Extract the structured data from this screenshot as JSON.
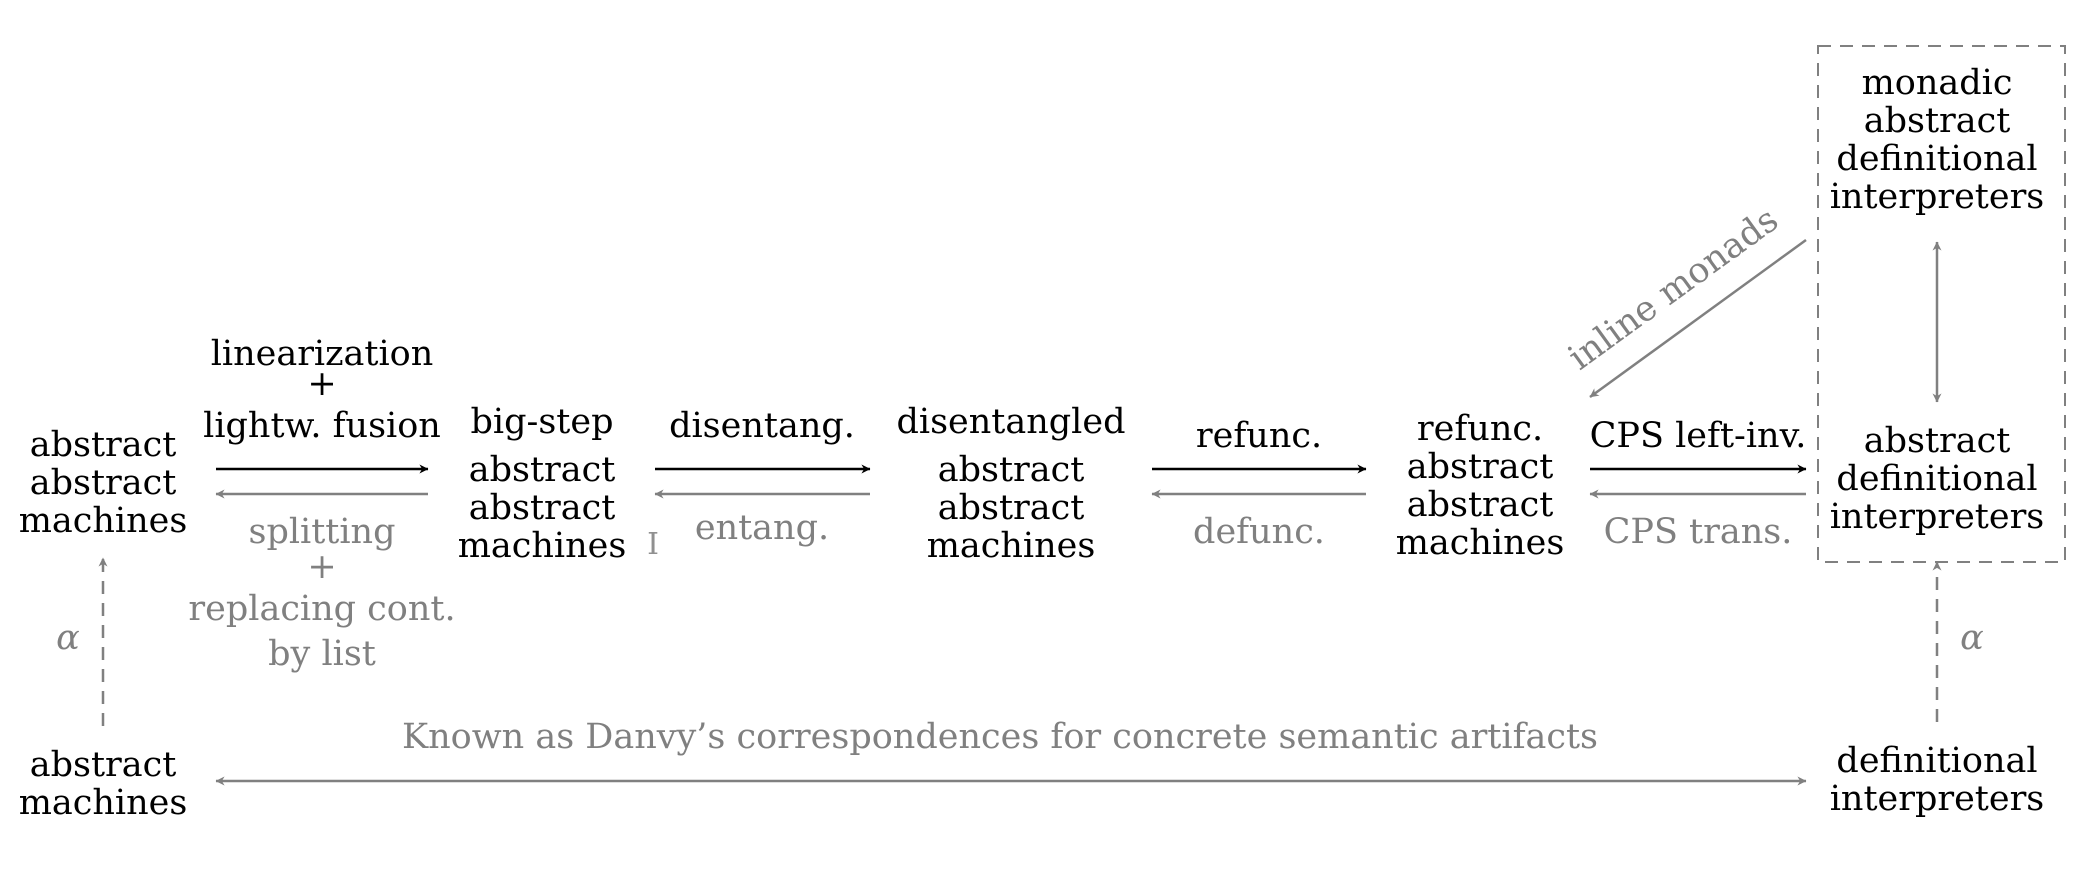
{
  "colors": {
    "black": "#000000",
    "gray": "#808080"
  },
  "nodes": {
    "aam": [
      "abstract",
      "abstract",
      "machines"
    ],
    "bigstep": [
      "big-step",
      "abstract",
      "abstract",
      "machines"
    ],
    "disentangled": [
      "disentangled",
      "abstract",
      "abstract",
      "machines"
    ],
    "refunc": [
      "refunc.",
      "abstract",
      "abstract",
      "machines"
    ],
    "adi": [
      "abstract",
      "definitional",
      "interpreters"
    ],
    "madi": [
      "monadic",
      "abstract",
      "definitional",
      "interpreters"
    ],
    "am": [
      "abstract",
      "machines"
    ],
    "di": [
      "definitional",
      "interpreters"
    ]
  },
  "edges": {
    "e1_fwd": [
      "linearization",
      "+",
      "lightw. fusion"
    ],
    "e1_back": [
      "splitting",
      "+",
      "replacing cont.",
      "by list"
    ],
    "e2_fwd": [
      "disentang."
    ],
    "e2_back": [
      "entang."
    ],
    "e3_fwd": [
      "refunc."
    ],
    "e3_back": [
      "defunc."
    ],
    "e4_fwd": [
      "CPS left-inv."
    ],
    "e4_back": [
      "CPS trans."
    ],
    "inline": "inline monads",
    "alpha_left": "α",
    "alpha_right": "α",
    "bottom": "Known as Danvy’s correspondences for concrete semantic artifacts"
  },
  "cursor_glyph": "I"
}
